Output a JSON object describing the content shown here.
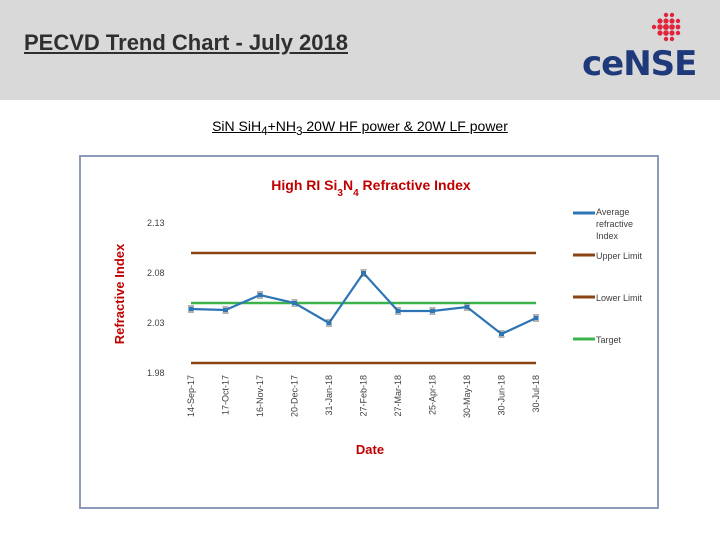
{
  "slide": {
    "title": "PECVD Trend Chart - July 2018",
    "subtitle_parts": [
      "SiN SiH",
      "4",
      "+NH",
      "3",
      " 20W HF power & 20W LF power"
    ],
    "logo_text": "ceNSE"
  },
  "chart_data": {
    "type": "line",
    "title_parts": [
      "High RI Si",
      "3",
      "N",
      "4",
      " Refractive Index"
    ],
    "xlabel": "Date",
    "ylabel": "Refractive Index",
    "ylim": [
      1.98,
      2.13
    ],
    "yticks": [
      "1.98",
      "2.03",
      "2.08",
      "2.13"
    ],
    "ytick_values": [
      1.98,
      2.03,
      2.08,
      2.13
    ],
    "categories": [
      "14-Sep-17",
      "17-Oct-17",
      "16-Nov-17",
      "20-Dec-17",
      "31-Jan-18",
      "27-Feb-18",
      "27-Mar-18",
      "25-Apr-18",
      "30-May-18",
      "30-Jun-18",
      "30-Jul-18"
    ],
    "grid": false,
    "legend_position": "right",
    "series": [
      {
        "name": "Average refractive Index",
        "color": "#2e75b6",
        "values": [
          2.044,
          2.043,
          2.058,
          2.05,
          2.03,
          2.08,
          2.042,
          2.042,
          2.046,
          2.019,
          2.035
        ]
      },
      {
        "name": "Upper Limit",
        "color": "#8b4513",
        "values": [
          2.1,
          2.1,
          2.1,
          2.1,
          2.1,
          2.1,
          2.1,
          2.1,
          2.1,
          2.1,
          2.1
        ]
      },
      {
        "name": "Lower Limit",
        "color": "#8b4513",
        "values": [
          1.99,
          1.99,
          1.99,
          1.99,
          1.99,
          1.99,
          1.99,
          1.99,
          1.99,
          1.99,
          1.99
        ]
      },
      {
        "name": "Target",
        "color": "#3cb44b",
        "values": [
          2.05,
          2.05,
          2.05,
          2.05,
          2.05,
          2.05,
          2.05,
          2.05,
          2.05,
          2.05,
          2.05
        ]
      }
    ],
    "legend_label_lines": [
      [
        "Average",
        "refractive",
        "Index"
      ],
      [
        "Upper Limit"
      ],
      [
        "Lower Limit"
      ],
      [
        "Target"
      ]
    ]
  }
}
